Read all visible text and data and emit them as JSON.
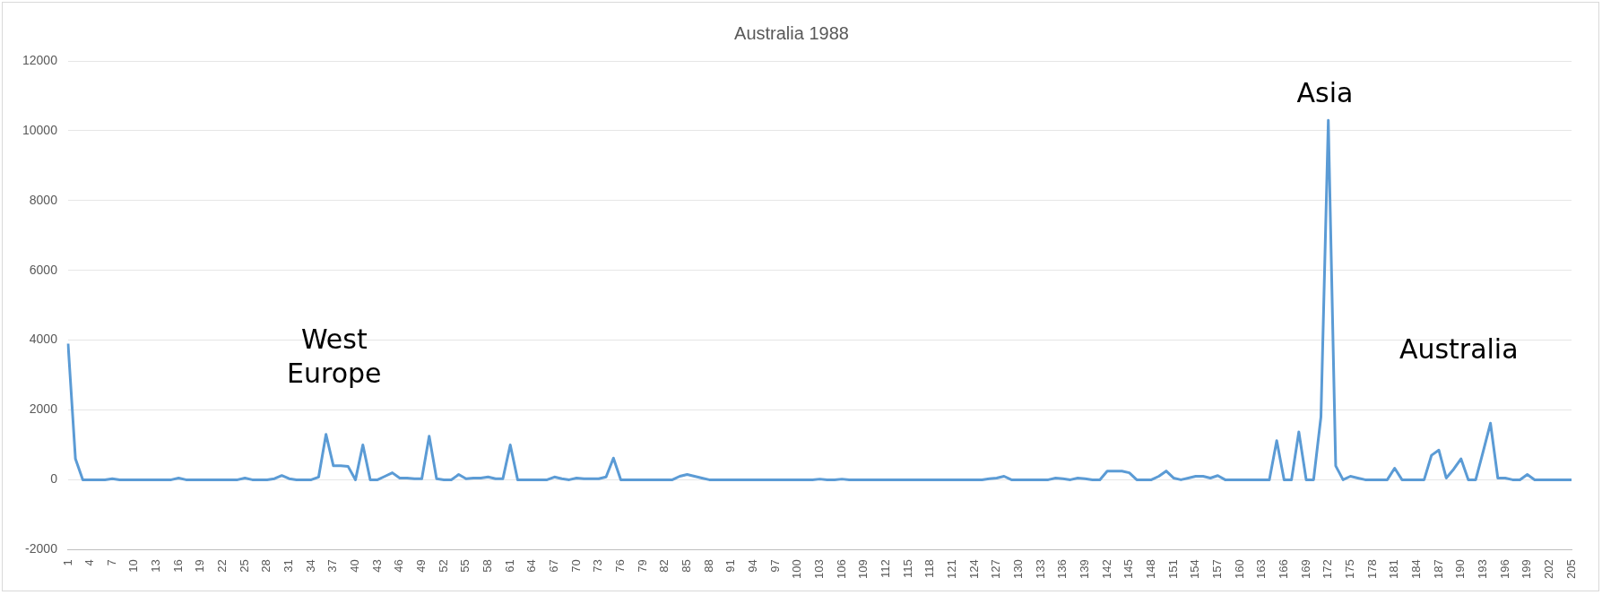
{
  "chart_data": {
    "type": "line",
    "title": "Australia 1988",
    "color": "#5b9bd5",
    "grid": "y",
    "marker": "none",
    "ylim": [
      -2000,
      12000
    ],
    "yticks": [
      -2000,
      0,
      2000,
      4000,
      6000,
      8000,
      10000,
      12000
    ],
    "categories": [
      "1",
      null,
      null,
      "4",
      null,
      null,
      "7",
      null,
      null,
      "10",
      null,
      null,
      "13",
      null,
      null,
      "16",
      null,
      null,
      "19",
      null,
      null,
      "22",
      null,
      null,
      "25",
      null,
      null,
      "28",
      null,
      null,
      "31",
      null,
      null,
      "34",
      null,
      null,
      "37",
      null,
      null,
      "40",
      null,
      null,
      "43",
      null,
      null,
      "46",
      null,
      null,
      "49",
      null,
      null,
      "52",
      null,
      null,
      "55",
      null,
      null,
      "58",
      null,
      null,
      "61",
      null,
      null,
      "64",
      null,
      null,
      "67",
      null,
      null,
      "70",
      null,
      null,
      "73",
      null,
      null,
      "76",
      null,
      null,
      "79",
      null,
      null,
      "82",
      null,
      null,
      "85",
      null,
      null,
      "88",
      null,
      null,
      "91",
      null,
      null,
      "94",
      null,
      null,
      "97",
      null,
      null,
      "100",
      null,
      null,
      "103",
      null,
      null,
      "106",
      null,
      null,
      "109",
      null,
      null,
      "112",
      null,
      null,
      "115",
      null,
      null,
      "118",
      null,
      null,
      "121",
      null,
      null,
      "124",
      null,
      null,
      "127",
      null,
      null,
      "130",
      null,
      null,
      "133",
      null,
      null,
      "136",
      null,
      null,
      "139",
      null,
      null,
      "142",
      null,
      null,
      "145",
      null,
      null,
      "148",
      null,
      null,
      "151",
      null,
      null,
      "154",
      null,
      null,
      "157",
      null,
      null,
      "160",
      null,
      null,
      "163",
      null,
      null,
      "166",
      null,
      null,
      "169",
      null,
      null,
      "172",
      null,
      null,
      "175",
      null,
      null,
      "178",
      null,
      null,
      "181",
      null,
      null,
      "184",
      null,
      null,
      "187",
      null,
      null,
      "190",
      null,
      null,
      "193",
      null,
      null,
      "196",
      null,
      null,
      "199",
      null,
      null,
      "202",
      null,
      null,
      "205"
    ],
    "values": [
      3900,
      600,
      0,
      0,
      0,
      0,
      30,
      0,
      0,
      0,
      0,
      0,
      0,
      0,
      0,
      50,
      0,
      0,
      0,
      0,
      0,
      0,
      0,
      0,
      50,
      0,
      0,
      0,
      30,
      120,
      30,
      0,
      0,
      0,
      80,
      1300,
      400,
      400,
      380,
      0,
      1000,
      0,
      0,
      100,
      200,
      50,
      50,
      30,
      30,
      1250,
      30,
      0,
      0,
      150,
      30,
      50,
      50,
      80,
      30,
      30,
      1000,
      0,
      0,
      0,
      0,
      0,
      80,
      30,
      0,
      50,
      30,
      30,
      30,
      80,
      620,
      0,
      0,
      0,
      0,
      0,
      0,
      0,
      0,
      100,
      150,
      100,
      50,
      0,
      0,
      0,
      0,
      0,
      0,
      0,
      0,
      0,
      0,
      0,
      0,
      0,
      0,
      0,
      20,
      0,
      0,
      20,
      0,
      0,
      0,
      0,
      0,
      0,
      0,
      0,
      0,
      0,
      0,
      0,
      0,
      0,
      0,
      0,
      0,
      0,
      0,
      30,
      50,
      100,
      0,
      0,
      0,
      0,
      0,
      0,
      50,
      30,
      0,
      50,
      30,
      0,
      0,
      250,
      250,
      250,
      200,
      0,
      0,
      0,
      100,
      250,
      50,
      0,
      50,
      100,
      100,
      50,
      120,
      0,
      0,
      0,
      0,
      0,
      0,
      0,
      1120,
      0,
      0,
      1370,
      0,
      0,
      1800,
      10300,
      400,
      0,
      100,
      50,
      0,
      0,
      0,
      0,
      330,
      0,
      0,
      0,
      0,
      700,
      850,
      50,
      300,
      600,
      0,
      0,
      800,
      1620,
      50,
      50,
      0,
      0,
      150,
      0,
      0,
      0,
      0,
      0,
      0
    ],
    "annotations": [
      "West Europe",
      "Asia",
      "Australia"
    ]
  }
}
